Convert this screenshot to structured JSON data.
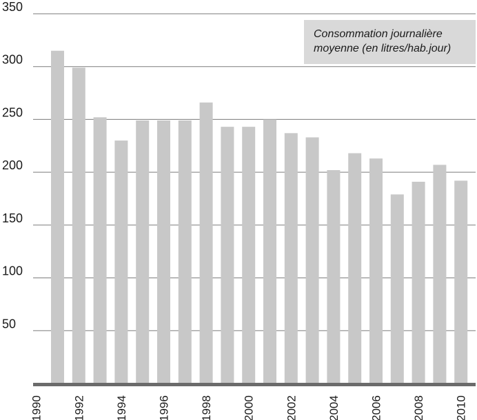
{
  "chart_data": {
    "type": "bar",
    "title": "",
    "legend": {
      "lines": [
        "Consommation journalière",
        "moyenne (en litres/hab.jour)"
      ],
      "placement": "top-right"
    },
    "x": [
      1991,
      1992,
      1993,
      1994,
      1995,
      1996,
      1997,
      1998,
      1999,
      2000,
      2001,
      2002,
      2003,
      2004,
      2005,
      2006,
      2007,
      2008,
      2009,
      2010
    ],
    "values": [
      315,
      299,
      252,
      230,
      249,
      249,
      249,
      266,
      243,
      243,
      250,
      237,
      233,
      202,
      218,
      213,
      179,
      191,
      207,
      192
    ],
    "x_tick_labels": [
      "1990",
      "1992",
      "1994",
      "1996",
      "1998",
      "2000",
      "2002",
      "2004",
      "2006",
      "2008",
      "2010"
    ],
    "y_tick_labels": [
      "50",
      "100",
      "150",
      "200",
      "250",
      "300",
      "350"
    ],
    "y_ticks": [
      50,
      100,
      150,
      200,
      250,
      300,
      350
    ],
    "ylim": [
      0,
      350
    ],
    "xlabel": "",
    "ylabel": "",
    "grid": "horizontal",
    "colors": {
      "bar": "#c8c8c8",
      "grid": "#7a7a7a",
      "axis": "#6b6b6b",
      "legend_bg": "#d9d9d9"
    }
  }
}
